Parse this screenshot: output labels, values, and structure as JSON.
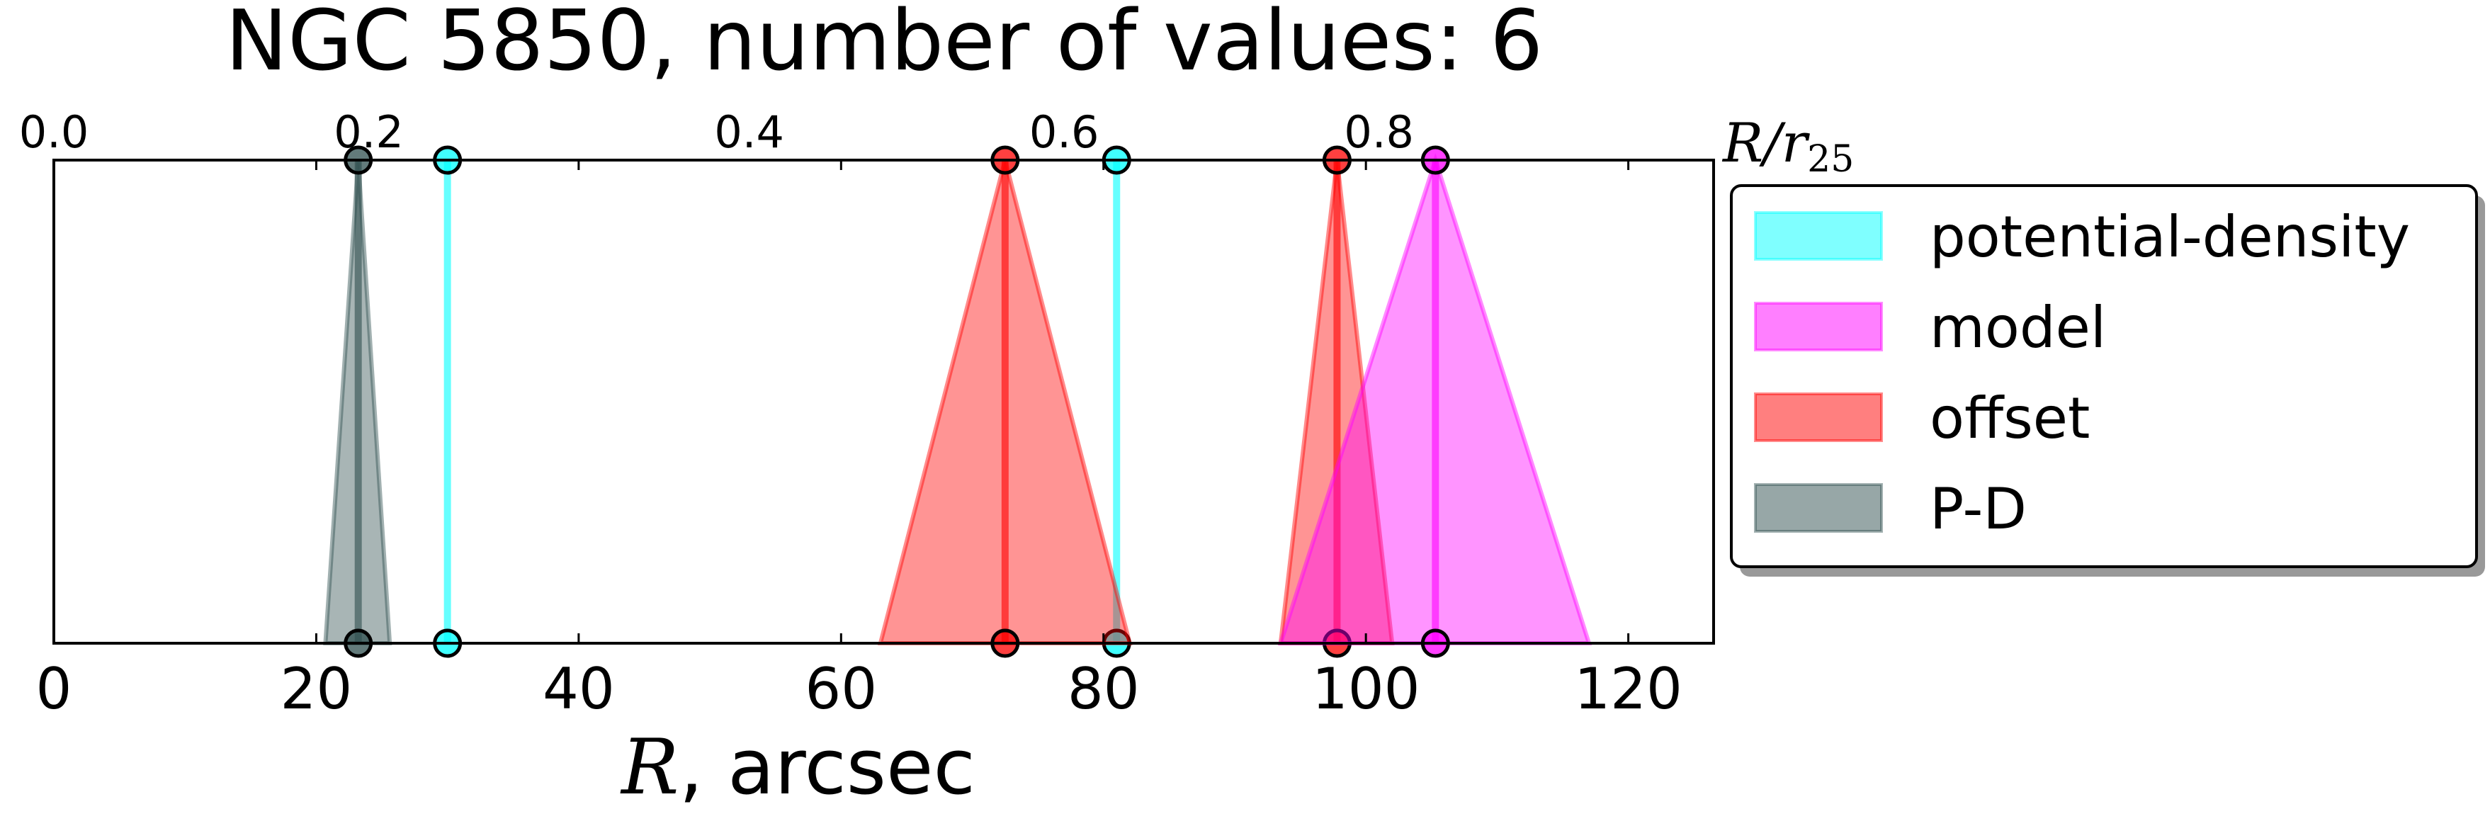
{
  "chart_data": {
    "type": "interval",
    "title": "NGC 5850, number of values: 6",
    "xlabel_symbol": "R",
    "xlabel_suffix": ", arcsec",
    "top_axis_label": "R/r",
    "top_axis_label_sub": "25",
    "xlim": [
      0,
      126.5
    ],
    "x_ticks": [
      0,
      20,
      40,
      60,
      80,
      100,
      120
    ],
    "top_ticks": [
      "0.0",
      "0.2",
      "0.4",
      "0.6",
      "0.8"
    ],
    "top_tick_positions": [
      0,
      24,
      53,
      77,
      101
    ],
    "grid": false,
    "legend_position": "right",
    "legend": [
      {
        "label": "potential-density",
        "color": "#00ffff"
      },
      {
        "label": "model",
        "color": "#ff00ff"
      },
      {
        "label": "offset",
        "color": "#ff0000"
      },
      {
        "label": "P-D",
        "color": "#2f4f4f"
      }
    ],
    "series": [
      {
        "name": "P-D",
        "color": "#2f4f4f",
        "values": [
          {
            "x": 23.2,
            "lo": 20.7,
            "hi": 25.6
          }
        ]
      },
      {
        "name": "potential-density",
        "color": "#00ffff",
        "values": [
          {
            "x": 30.0
          },
          {
            "x": 81.0
          }
        ]
      },
      {
        "name": "offset",
        "color": "#ff0000",
        "values": [
          {
            "x": 72.5,
            "lo": 63.0,
            "hi": 82.0
          },
          {
            "x": 97.8,
            "lo": 93.5,
            "hi": 102.0
          }
        ]
      },
      {
        "name": "model",
        "color": "#ff00ff",
        "values": [
          {
            "x": 105.3,
            "lo": 93.5,
            "hi": 117.0
          }
        ]
      }
    ]
  }
}
